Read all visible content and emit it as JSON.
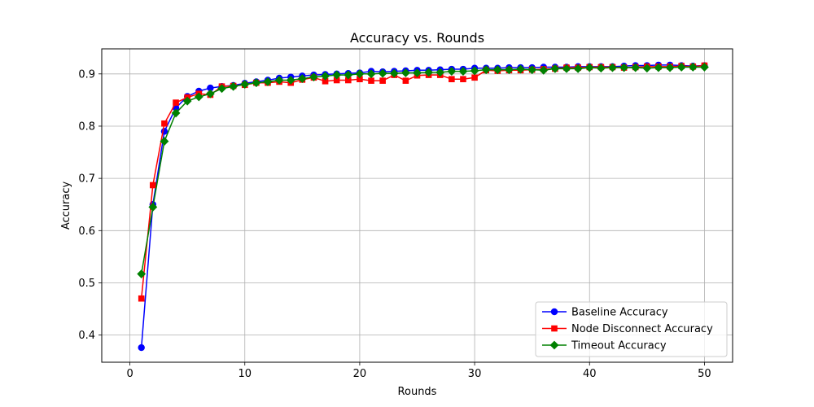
{
  "chart_data": {
    "type": "line",
    "title": "Accuracy vs. Rounds",
    "xlabel": "Rounds",
    "ylabel": "Accuracy",
    "xlim": [
      -2.45,
      52.45
    ],
    "ylim": [
      0.348,
      0.948
    ],
    "xticks": [
      "0",
      "10",
      "20",
      "30",
      "40",
      "50"
    ],
    "xtick_values": [
      0,
      10,
      20,
      30,
      40,
      50
    ],
    "yticks": [
      "0.4",
      "0.5",
      "0.6",
      "0.7",
      "0.8",
      "0.9"
    ],
    "ytick_values": [
      0.4,
      0.5,
      0.6,
      0.7,
      0.8,
      0.9
    ],
    "grid": true,
    "legend_position": "lower-right",
    "x": [
      1,
      2,
      3,
      4,
      5,
      6,
      7,
      8,
      9,
      10,
      11,
      12,
      13,
      14,
      15,
      16,
      17,
      18,
      19,
      20,
      21,
      22,
      23,
      24,
      25,
      26,
      27,
      28,
      29,
      30,
      31,
      32,
      33,
      34,
      35,
      36,
      37,
      38,
      39,
      40,
      41,
      42,
      43,
      44,
      45,
      46,
      47,
      48,
      49,
      50
    ],
    "series": [
      {
        "name": "Baseline Accuracy",
        "color": "#0000ff",
        "marker": "circle",
        "values": [
          0.376,
          0.65,
          0.79,
          0.835,
          0.857,
          0.867,
          0.873,
          0.876,
          0.878,
          0.882,
          0.885,
          0.888,
          0.892,
          0.894,
          0.896,
          0.898,
          0.899,
          0.9,
          0.901,
          0.902,
          0.905,
          0.904,
          0.905,
          0.906,
          0.907,
          0.907,
          0.908,
          0.909,
          0.909,
          0.911,
          0.911,
          0.911,
          0.912,
          0.912,
          0.912,
          0.913,
          0.913,
          0.913,
          0.914,
          0.914,
          0.914,
          0.914,
          0.915,
          0.916,
          0.916,
          0.917,
          0.917,
          0.916,
          0.915,
          0.916
        ]
      },
      {
        "name": "Node Disconnect Accuracy",
        "color": "#ff0000",
        "marker": "square",
        "values": [
          0.47,
          0.687,
          0.805,
          0.845,
          0.855,
          0.862,
          0.86,
          0.876,
          0.877,
          0.879,
          0.883,
          0.883,
          0.885,
          0.883,
          0.889,
          0.893,
          0.886,
          0.888,
          0.888,
          0.89,
          0.887,
          0.887,
          0.898,
          0.887,
          0.897,
          0.898,
          0.898,
          0.89,
          0.89,
          0.893,
          0.907,
          0.906,
          0.907,
          0.907,
          0.908,
          0.909,
          0.91,
          0.912,
          0.912,
          0.913,
          0.913,
          0.913,
          0.912,
          0.913,
          0.914,
          0.914,
          0.914,
          0.915,
          0.914,
          0.916
        ]
      },
      {
        "name": "Timeout Accuracy",
        "color": "#008000",
        "marker": "diamond",
        "values": [
          0.517,
          0.645,
          0.771,
          0.825,
          0.848,
          0.856,
          0.862,
          0.872,
          0.876,
          0.88,
          0.883,
          0.885,
          0.888,
          0.888,
          0.891,
          0.894,
          0.896,
          0.898,
          0.898,
          0.9,
          0.9,
          0.901,
          0.901,
          0.902,
          0.902,
          0.903,
          0.903,
          0.905,
          0.905,
          0.906,
          0.908,
          0.908,
          0.908,
          0.909,
          0.908,
          0.907,
          0.91,
          0.91,
          0.91,
          0.912,
          0.911,
          0.912,
          0.912,
          0.912,
          0.911,
          0.912,
          0.912,
          0.913,
          0.913,
          0.913
        ]
      }
    ]
  }
}
